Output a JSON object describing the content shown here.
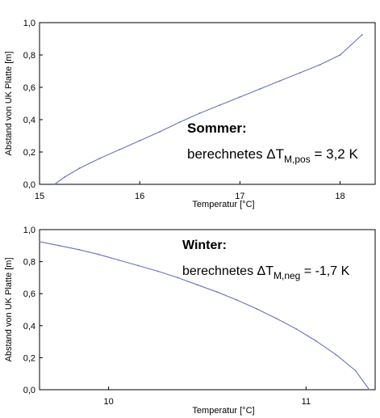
{
  "chart_data": [
    {
      "type": "line",
      "xlabel": "Temperatur [°C]",
      "ylabel": "Abstand von UK Platte [m]",
      "xlim": [
        15.0,
        18.35
      ],
      "ylim": [
        0.0,
        1.0
      ],
      "xticks": [
        "15",
        "16",
        "17",
        "18"
      ],
      "yticks": [
        "0,0",
        "0,2",
        "0,4",
        "0,6",
        "0,8",
        "1,0"
      ],
      "grid": false,
      "annotation": {
        "title": "Sommer:",
        "text_prefix": "berechnetes ",
        "symbol": "ΔT",
        "subscript": "M,pos",
        "text_suffix": " = 3,2 K"
      },
      "series": [
        {
          "color": "#6870c0",
          "x": [
            15.15,
            15.25,
            15.4,
            15.6,
            15.8,
            16.0,
            16.2,
            16.4,
            16.6,
            16.8,
            17.0,
            17.2,
            17.4,
            17.6,
            17.8,
            18.0,
            18.22
          ],
          "y": [
            0.0,
            0.045,
            0.1,
            0.16,
            0.215,
            0.27,
            0.325,
            0.385,
            0.44,
            0.49,
            0.54,
            0.59,
            0.64,
            0.69,
            0.74,
            0.8,
            0.925
          ]
        }
      ]
    },
    {
      "type": "line",
      "xlabel": "Temperatur [°C]",
      "ylabel": "Abstand von UK Platte [m]",
      "xlim": [
        9.65,
        11.35
      ],
      "ylim": [
        0.0,
        1.0
      ],
      "xticks": [
        "10",
        "11"
      ],
      "yticks": [
        "0,0",
        "0,2",
        "0,4",
        "0,6",
        "0,8",
        "1,0"
      ],
      "grid": false,
      "annotation": {
        "title": "Winter:",
        "text_prefix": "berechnetes ",
        "symbol": "ΔT",
        "subscript": "M,neg",
        "text_suffix": " = -1,7 K"
      },
      "series": [
        {
          "color": "#6870c0",
          "x": [
            9.65,
            9.75,
            9.85,
            9.95,
            10.05,
            10.15,
            10.25,
            10.35,
            10.45,
            10.55,
            10.65,
            10.75,
            10.85,
            10.95,
            11.05,
            11.15,
            11.25,
            11.32
          ],
          "y": [
            0.925,
            0.9,
            0.875,
            0.845,
            0.81,
            0.775,
            0.74,
            0.7,
            0.655,
            0.61,
            0.56,
            0.505,
            0.445,
            0.38,
            0.305,
            0.22,
            0.12,
            0.0
          ]
        }
      ]
    }
  ]
}
